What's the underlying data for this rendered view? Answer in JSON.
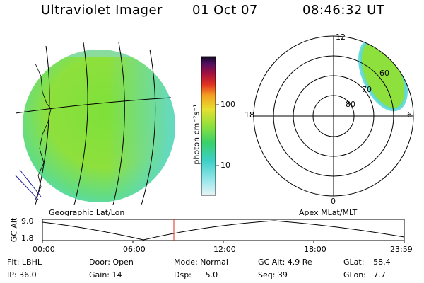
{
  "header": {
    "title": "Ultraviolet Imager",
    "date": "01 Oct 07",
    "time": "08:46:32 UT"
  },
  "colorbar": {
    "unit_label": "photon cm⁻²s⁻¹",
    "ticks": [
      "100",
      "10"
    ]
  },
  "polar": {
    "mlt_labels": {
      "top": "12",
      "left": "18",
      "right": "6",
      "bottom": "0"
    },
    "lat_labels": [
      "60",
      "70",
      "80"
    ]
  },
  "map_labels": {
    "left": "Geographic Lat/Lon",
    "right": "Apex MLat/MLT"
  },
  "timeline": {
    "ylabel": "GC Alt",
    "yticks": [
      "9.0",
      "1.8"
    ],
    "xticks": [
      "00:00",
      "06:00",
      "12:00",
      "18:00",
      "23:59"
    ],
    "cursor_color": "#e03020"
  },
  "info": {
    "filter": "Flt: LBHL",
    "door": "Door: Open",
    "mode": "Mode: Normal",
    "gc_alt": "GC Alt: 4.9 Re",
    "glat": "GLat: −58.4",
    "ip": "IP: 36.0",
    "gain": "Gain: 14",
    "dsp": "Dsp:   −5.0",
    "seq": "Seq: 39",
    "glon": "GLon:   7.7"
  }
}
